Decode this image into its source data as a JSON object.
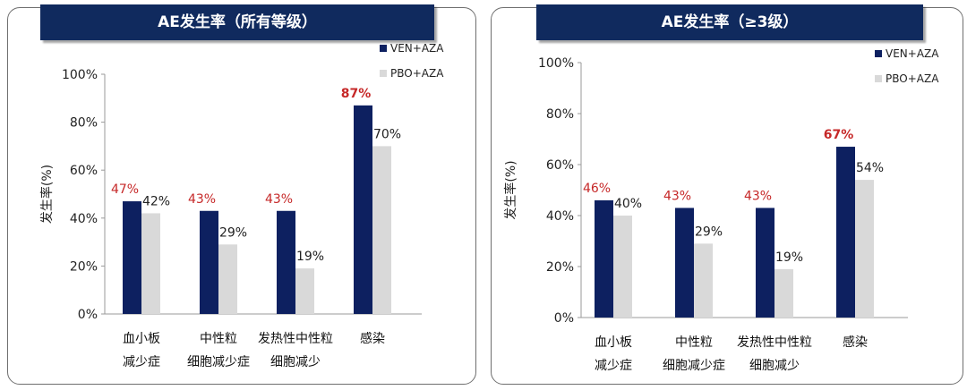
{
  "chart_data": [
    {
      "type": "bar",
      "title": "AE发生率（所有等级）",
      "ylabel": "发生率(%)",
      "ylim": [
        0,
        100
      ],
      "yticks": [
        0,
        20,
        40,
        60,
        80,
        100
      ],
      "ytick_labels": [
        "0%",
        "20%",
        "40%",
        "60%",
        "80%",
        "100%"
      ],
      "categories": [
        [
          "血小板",
          "减少症"
        ],
        [
          "中性粒",
          "细胞减少症"
        ],
        [
          "发热性中性粒",
          "细胞减少"
        ],
        [
          "感染"
        ]
      ],
      "series": [
        {
          "name": "VEN+AZA",
          "color": "#0d2060",
          "values": [
            47,
            43,
            43,
            87
          ],
          "labels": [
            "47%",
            "43%",
            "43%",
            "87%"
          ],
          "label_color": "#c62828"
        },
        {
          "name": "PBO+AZA",
          "color": "#d9d9d9",
          "values": [
            42,
            29,
            19,
            70
          ],
          "labels": [
            "42%",
            "29%",
            "19%",
            "70%"
          ],
          "label_color": "#222222"
        }
      ],
      "bold_label_index": 3,
      "legend_position": "top-right",
      "grid": false
    },
    {
      "type": "bar",
      "title": "AE发生率（≥3级）",
      "ylabel": "发生率(%)",
      "ylim": [
        0,
        100
      ],
      "yticks": [
        0,
        20,
        40,
        60,
        80,
        100
      ],
      "ytick_labels": [
        "0%",
        "20%",
        "40%",
        "60%",
        "80%",
        "100%"
      ],
      "categories": [
        [
          "血小板",
          "减少症"
        ],
        [
          "中性粒",
          "细胞减少症"
        ],
        [
          "发热性中性粒",
          "细胞减少"
        ],
        [
          "感染"
        ]
      ],
      "series": [
        {
          "name": "VEN+AZA",
          "color": "#0d2060",
          "values": [
            46,
            43,
            43,
            67
          ],
          "labels": [
            "46%",
            "43%",
            "43%",
            "67%"
          ],
          "label_color": "#c62828"
        },
        {
          "name": "PBO+AZA",
          "color": "#d9d9d9",
          "values": [
            40,
            29,
            19,
            54
          ],
          "labels": [
            "40%",
            "29%",
            "19%",
            "54%"
          ],
          "label_color": "#222222"
        }
      ],
      "bold_label_index": 3,
      "legend_position": "top-right",
      "grid": false
    }
  ]
}
